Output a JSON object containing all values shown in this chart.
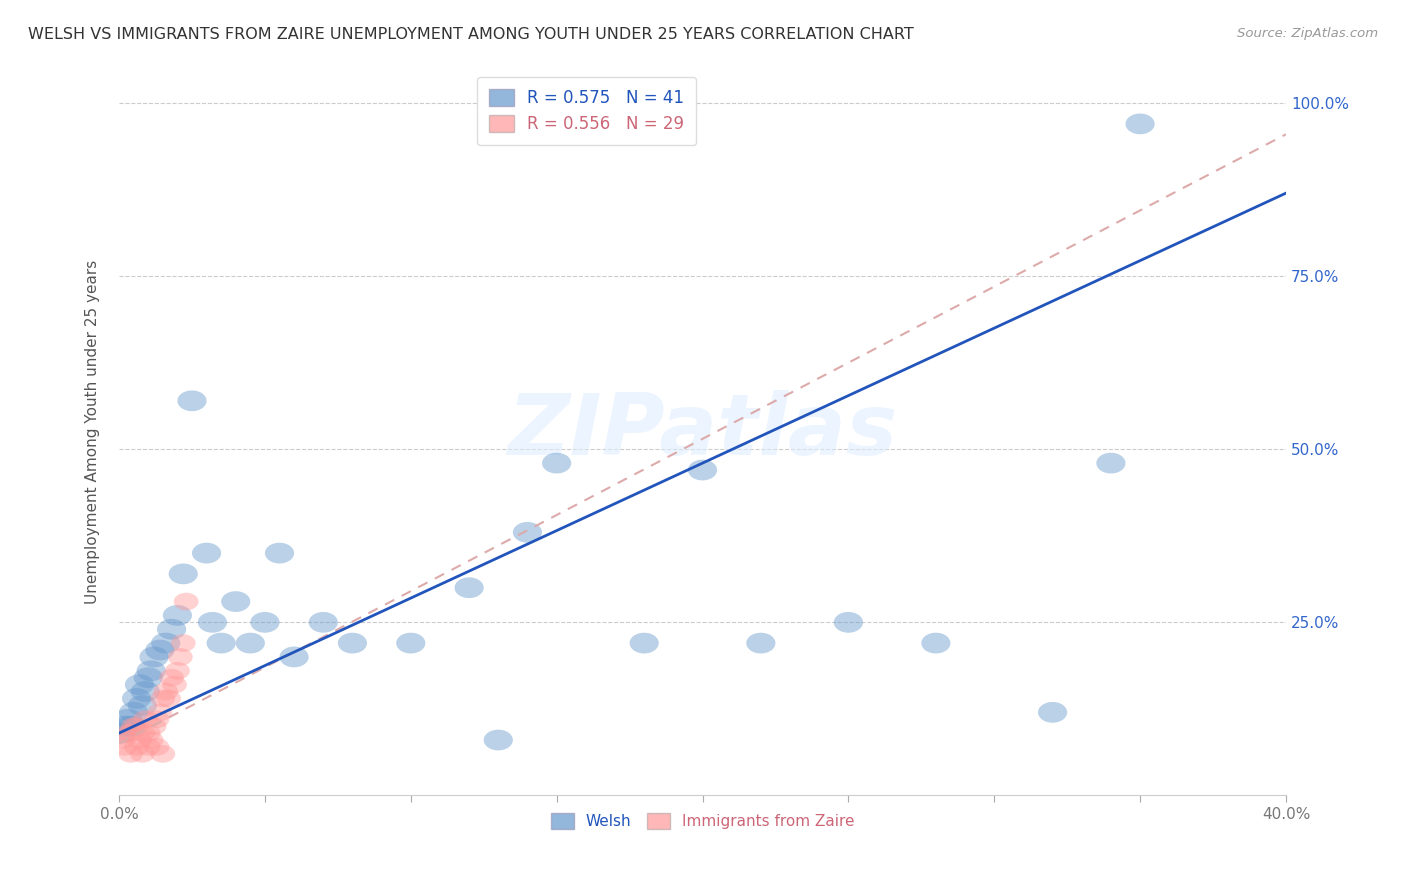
{
  "title": "WELSH VS IMMIGRANTS FROM ZAIRE UNEMPLOYMENT AMONG YOUTH UNDER 25 YEARS CORRELATION CHART",
  "source": "Source: ZipAtlas.com",
  "ylabel": "Unemployment Among Youth under 25 years",
  "xlim": [
    0,
    0.4
  ],
  "ylim": [
    0,
    1.05
  ],
  "yticks": [
    0.0,
    0.25,
    0.5,
    0.75,
    1.0
  ],
  "ytick_labels_right": [
    "",
    "25.0%",
    "50.0%",
    "75.0%",
    "100.0%"
  ],
  "xtick_positions": [
    0.0,
    0.05,
    0.1,
    0.15,
    0.2,
    0.25,
    0.3,
    0.35,
    0.4
  ],
  "xtick_labels": [
    "0.0%",
    "",
    "",
    "",
    "",
    "",
    "",
    "",
    "40.0%"
  ],
  "welsh_R": 0.575,
  "welsh_N": 41,
  "zaire_R": 0.556,
  "zaire_N": 29,
  "welsh_color": "#6699CC",
  "zaire_color": "#FF9999",
  "welsh_line_color": "#2255BB",
  "zaire_line_color": "#DDAAAA",
  "background_color": "#FFFFFF",
  "watermark": "ZIPatlas",
  "welsh_x": [
    0.001,
    0.002,
    0.003,
    0.004,
    0.005,
    0.006,
    0.007,
    0.008,
    0.009,
    0.01,
    0.011,
    0.012,
    0.014,
    0.016,
    0.018,
    0.02,
    0.022,
    0.025,
    0.03,
    0.032,
    0.035,
    0.04,
    0.045,
    0.05,
    0.055,
    0.06,
    0.07,
    0.08,
    0.1,
    0.12,
    0.13,
    0.14,
    0.15,
    0.18,
    0.2,
    0.22,
    0.25,
    0.28,
    0.32,
    0.35,
    0.34
  ],
  "welsh_y": [
    0.09,
    0.1,
    0.11,
    0.1,
    0.12,
    0.14,
    0.16,
    0.13,
    0.15,
    0.17,
    0.18,
    0.2,
    0.21,
    0.22,
    0.24,
    0.26,
    0.32,
    0.57,
    0.35,
    0.25,
    0.22,
    0.28,
    0.22,
    0.25,
    0.35,
    0.2,
    0.25,
    0.22,
    0.22,
    0.3,
    0.08,
    0.38,
    0.48,
    0.22,
    0.47,
    0.22,
    0.25,
    0.22,
    0.12,
    0.97,
    0.48
  ],
  "zaire_x": [
    0.001,
    0.002,
    0.003,
    0.004,
    0.005,
    0.006,
    0.007,
    0.008,
    0.009,
    0.01,
    0.011,
    0.012,
    0.013,
    0.014,
    0.015,
    0.016,
    0.017,
    0.018,
    0.019,
    0.02,
    0.021,
    0.022,
    0.023,
    0.013,
    0.015,
    0.01,
    0.008,
    0.004,
    0.006
  ],
  "zaire_y": [
    0.08,
    0.07,
    0.09,
    0.09,
    0.1,
    0.1,
    0.08,
    0.09,
    0.11,
    0.09,
    0.08,
    0.1,
    0.11,
    0.12,
    0.14,
    0.15,
    0.14,
    0.17,
    0.16,
    0.18,
    0.2,
    0.22,
    0.28,
    0.07,
    0.06,
    0.07,
    0.06,
    0.06,
    0.07
  ],
  "welsh_line_intercept": 0.09,
  "welsh_line_slope": 1.95,
  "zaire_line_intercept": 0.075,
  "zaire_line_slope": 2.2
}
